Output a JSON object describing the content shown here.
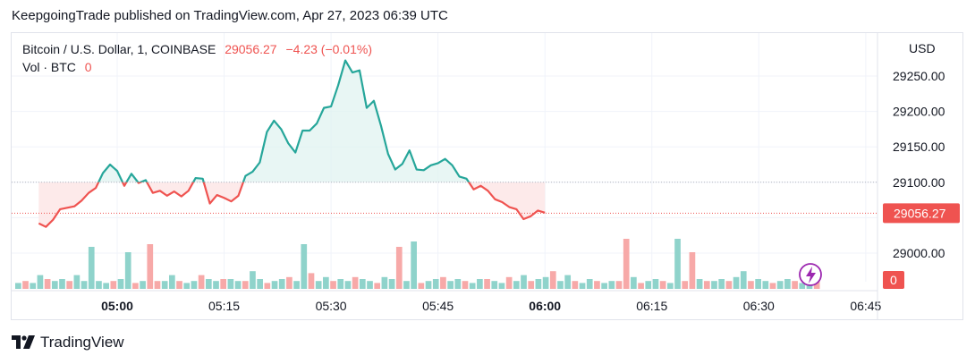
{
  "header": {
    "published_line": "KeepgoingTrade published on TradingView.com, Apr 27, 2023 06:39 UTC"
  },
  "legend": {
    "symbol": "Bitcoin / U.S. Dollar, 1, COINBASE",
    "last_price": "29056.27",
    "change": "−4.23 (−0.01%)",
    "volume_label": "Vol · BTC",
    "volume_value": "0"
  },
  "price_axis": {
    "currency": "USD",
    "ticks": [
      "29250.00",
      "29200.00",
      "29150.00",
      "29100.00",
      "29050.00",
      "29000.00"
    ],
    "last_price_label": "29056.27",
    "volume_label": "0"
  },
  "time_axis": {
    "ticks": [
      {
        "label": "05:00",
        "bold": true
      },
      {
        "label": "05:15",
        "bold": false
      },
      {
        "label": "05:30",
        "bold": false
      },
      {
        "label": "05:45",
        "bold": false
      },
      {
        "label": "06:00",
        "bold": true
      },
      {
        "label": "06:15",
        "bold": false
      },
      {
        "label": "06:30",
        "bold": false
      },
      {
        "label": "06:45",
        "bold": false
      }
    ]
  },
  "colors": {
    "up": "#26a69a",
    "down": "#ef5350",
    "up_fill": "#e0f3f0",
    "down_fill": "#fde6e6",
    "vol_up": "#8fd3cb",
    "vol_down": "#f7a9a8",
    "grid": "#f0f3fa",
    "axis_text": "#131722",
    "flash": "#9c27b0"
  },
  "footer": {
    "brand": "TradingView"
  },
  "chart_data": {
    "type": "area",
    "title": "Bitcoin / U.S. Dollar, 1, COINBASE",
    "baseline": 29100,
    "ylim": [
      28960,
      29295
    ],
    "x_range_minutes": [
      -11,
      60
    ],
    "x_start_time": "04:49",
    "x": [
      -11,
      -10,
      -9,
      -8,
      -7,
      -6,
      -5,
      -4,
      -3,
      -2,
      -1,
      0,
      1,
      2,
      3,
      4,
      5,
      6,
      7,
      8,
      9,
      10,
      11,
      12,
      13,
      14,
      15,
      16,
      17,
      18,
      19,
      20,
      21,
      22,
      23,
      24,
      25,
      26,
      27,
      28,
      29,
      30,
      31,
      32,
      33,
      34,
      35,
      36,
      37,
      38,
      39,
      40,
      41,
      42,
      43,
      44,
      45,
      46,
      47,
      48,
      49,
      50,
      51,
      52,
      53,
      54,
      55,
      56,
      57,
      58,
      59,
      60
    ],
    "y": [
      29042,
      29037,
      29047,
      29062,
      29064,
      29066,
      29074,
      29085,
      29092,
      29113,
      29125,
      29116,
      29095,
      29112,
      29099,
      29103,
      29085,
      29088,
      29081,
      29087,
      29080,
      29088,
      29106,
      29105,
      29070,
      29082,
      29078,
      29073,
      29081,
      29109,
      29115,
      29128,
      29171,
      29187,
      29175,
      29155,
      29142,
      29173,
      29173,
      29183,
      29205,
      29207,
      29237,
      29272,
      29255,
      29258,
      29205,
      29215,
      29180,
      29140,
      29118,
      29126,
      29145,
      29118,
      29117,
      29124,
      29127,
      29133,
      29124,
      29108,
      29105,
      29090,
      29095,
      29088,
      29076,
      29072,
      29065,
      29062,
      29048,
      29052,
      29060,
      29057
    ]
  }
}
